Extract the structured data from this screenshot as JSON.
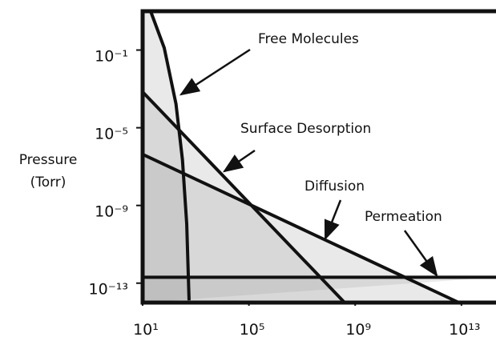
{
  "chart_data": {
    "type": "line",
    "ylabel": [
      "Pressure",
      "(Torr)"
    ],
    "log_x": true,
    "log_y": true,
    "xlim": [
      10,
      200000000000000
    ],
    "ylim": [
      1e-14,
      10
    ],
    "xticks": [
      {
        "value": 10,
        "label": "10¹"
      },
      {
        "value": 100000,
        "label": "10⁵"
      },
      {
        "value": 1000000000,
        "label": "10⁹"
      },
      {
        "value": 10000000000000,
        "label": "10¹³"
      }
    ],
    "yticks": [
      {
        "value": 0.1,
        "label": "10⁻¹"
      },
      {
        "value": 1e-05,
        "label": "10⁻⁵"
      },
      {
        "value": 1e-09,
        "label": "10⁻⁹"
      },
      {
        "value": 1e-13,
        "label": "10⁻¹³"
      }
    ],
    "series": [
      {
        "color": "#111",
        "x": [
          20,
          65,
          180,
          316,
          457,
          560
        ],
        "values": [
          10,
          0.13,
          0.00017,
          2.2e-07,
          1.1e-10,
          1.3e-14
        ]
      },
      {
        "color": "#111",
        "x": [
          10,
          400000000
        ],
        "values": [
          0.0007,
          1e-14
        ]
      },
      {
        "color": "#111",
        "x": [
          10,
          8000000000000
        ],
        "values": [
          4.3e-07,
          1e-14
        ]
      },
      {
        "color": "#111",
        "x": [
          10,
          200000000000000
        ],
        "values": [
          2e-13,
          2e-13
        ]
      }
    ],
    "annotations": [
      "Free Molecules",
      "Surface Desorption",
      "Diffusion",
      "Permeation"
    ]
  }
}
